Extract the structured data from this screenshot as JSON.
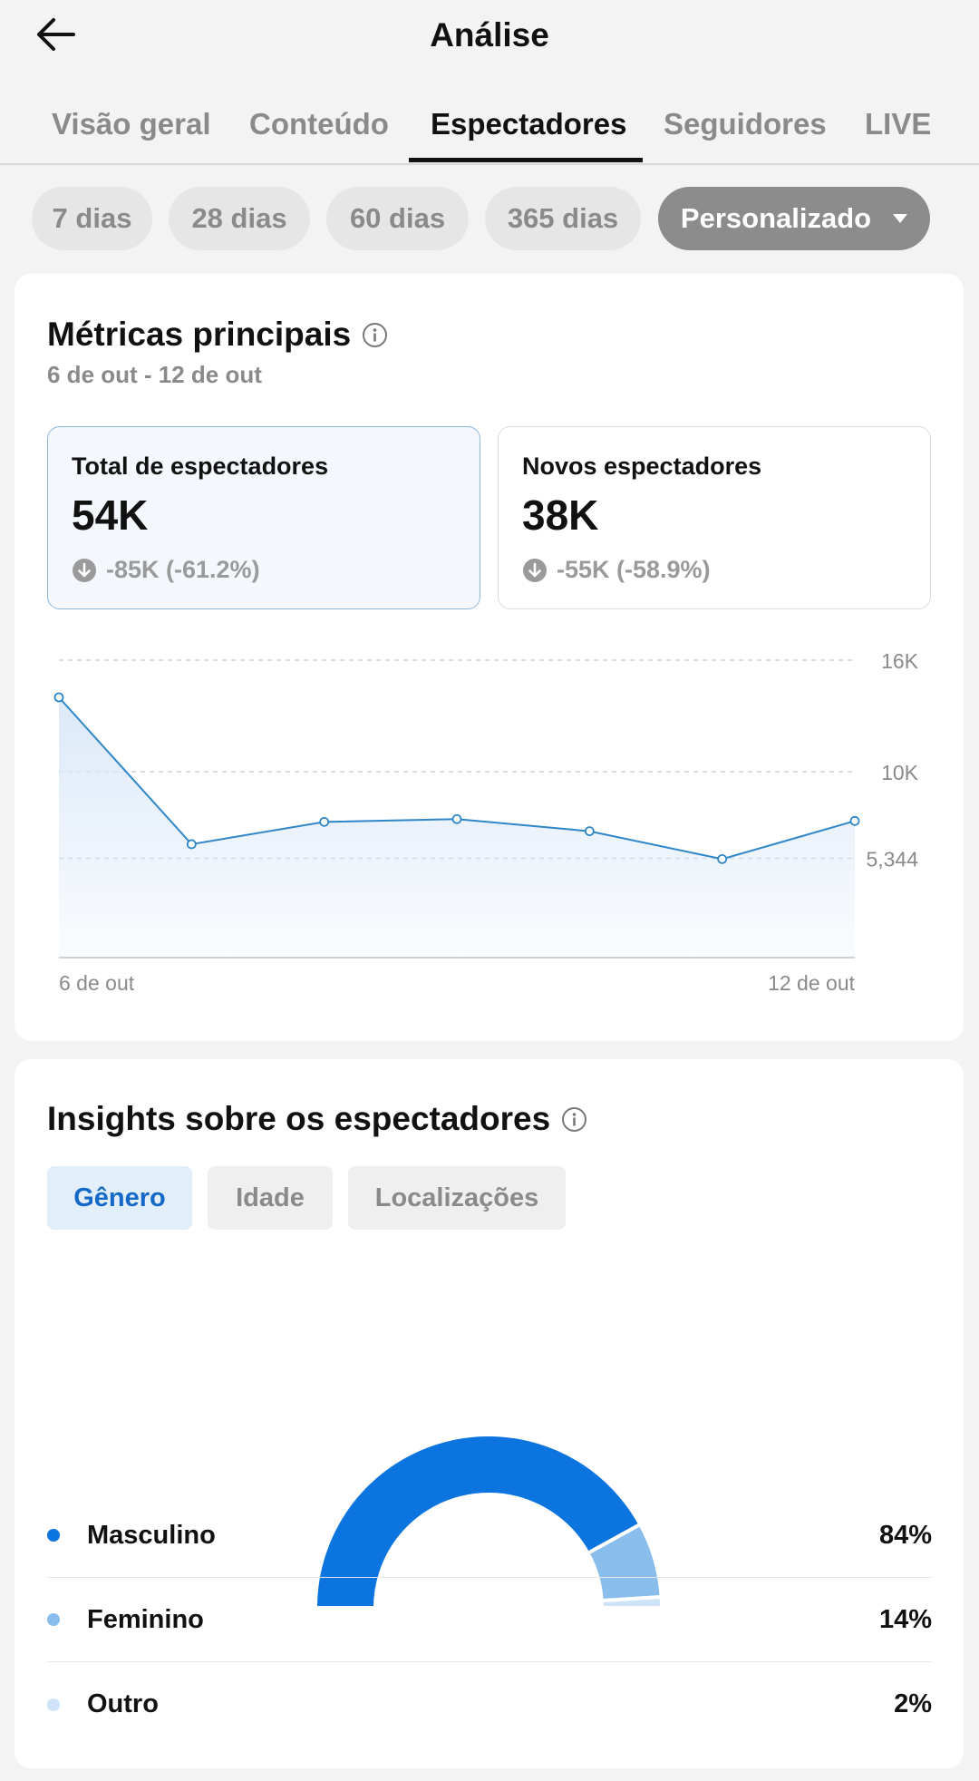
{
  "header": {
    "title": "Análise",
    "back_icon": "arrow-left-icon"
  },
  "tabs": [
    {
      "label": "Visão geral",
      "active": false
    },
    {
      "label": "Conteúdo",
      "active": false
    },
    {
      "label": "Espectadores",
      "active": true
    },
    {
      "label": "Seguidores",
      "active": false
    },
    {
      "label": "LIVE",
      "active": false
    }
  ],
  "periods": [
    {
      "label": "7 dias",
      "selected": false
    },
    {
      "label": "28 dias",
      "selected": false
    },
    {
      "label": "60 dias",
      "selected": false
    },
    {
      "label": "365 dias",
      "selected": false
    },
    {
      "label": "Personalizado",
      "selected": true
    }
  ],
  "metrics_section": {
    "title": "Métricas principais",
    "date_range": "6 de out - 12 de out",
    "cards": [
      {
        "label": "Total de espectadores",
        "value": "54K",
        "delta": "-85K (-61.2%)",
        "active": true
      },
      {
        "label": "Novos espectadores",
        "value": "38K",
        "delta": "-55K (-58.9%)",
        "active": false
      }
    ]
  },
  "chart_data": {
    "type": "area",
    "x": [
      "6 de out",
      "7 de out",
      "8 de out",
      "9 de out",
      "10 de out",
      "11 de out",
      "12 de out"
    ],
    "x_tick_labels": [
      "6 de out",
      "12 de out"
    ],
    "series": [
      {
        "values": [
          14000,
          6100,
          7300,
          7450,
          6800,
          5300,
          7350
        ]
      }
    ],
    "y_ticks": [
      {
        "value": 16000,
        "label": "16K"
      },
      {
        "value": 10000,
        "label": "10K"
      },
      {
        "value": 5344,
        "label": "5,344"
      }
    ],
    "ylim": [
      0,
      16000
    ],
    "grid": "dashed horizontal",
    "colors": {
      "line": "#2f86c8",
      "fill": "#dce9f8"
    }
  },
  "insights_section": {
    "title": "Insights sobre os espectadores",
    "tabs": [
      {
        "label": "Gênero",
        "active": true
      },
      {
        "label": "Idade",
        "active": false
      },
      {
        "label": "Localizações",
        "active": false
      }
    ],
    "gender": [
      {
        "label": "Masculino",
        "value": "84%",
        "share": 0.84,
        "color": "#0b74de"
      },
      {
        "label": "Feminino",
        "value": "14%",
        "share": 0.14,
        "color": "#88bdec"
      },
      {
        "label": "Outro",
        "value": "2%",
        "share": 0.02,
        "color": "#cfe3f7"
      }
    ]
  }
}
